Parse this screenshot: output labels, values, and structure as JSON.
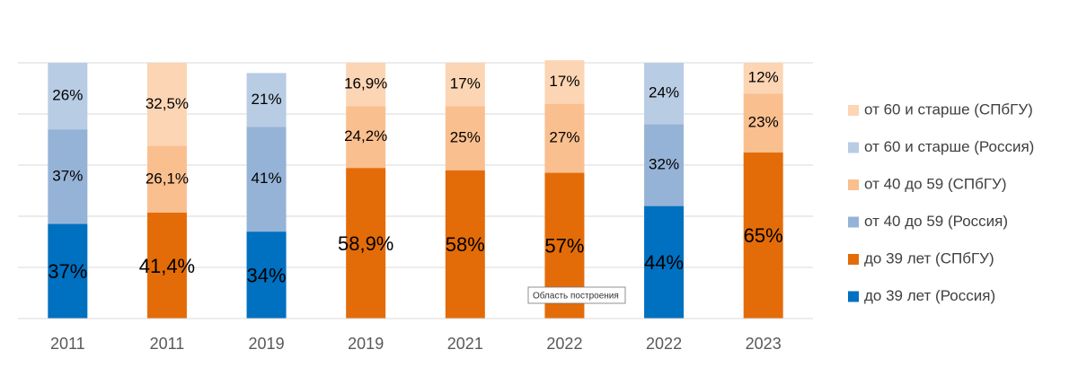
{
  "chart_data": {
    "type": "stacked_bar",
    "categories": [
      "2011",
      "2011",
      "2019",
      "2019",
      "2021",
      "2022",
      "2022",
      "2023"
    ],
    "ylim": [
      0,
      100
    ],
    "yticks": [
      0,
      20,
      40,
      60,
      80,
      100
    ],
    "grid": true,
    "legend": "right",
    "tooltip": "Область построения",
    "series": [
      {
        "name": "до 39 лет (Россия)",
        "color": "#0070c0",
        "values": [
          37,
          null,
          34,
          null,
          null,
          null,
          44,
          null
        ],
        "value_labels": [
          "37%",
          null,
          "34%",
          null,
          null,
          null,
          "44%",
          null
        ]
      },
      {
        "name": "до 39 лет (СПбГУ)",
        "color": "#e36c09",
        "values": [
          null,
          41.4,
          null,
          58.9,
          58,
          57,
          null,
          65
        ],
        "value_labels": [
          null,
          "41,4%",
          null,
          "58,9%",
          "58%",
          "57%",
          null,
          "65%"
        ]
      },
      {
        "name": "от 40 до 59 (Россия)",
        "color": "#95b3d7",
        "values": [
          37,
          null,
          41,
          null,
          null,
          null,
          32,
          null
        ],
        "value_labels": [
          "37%",
          null,
          "41%",
          null,
          null,
          null,
          "32%",
          null
        ]
      },
      {
        "name": "от 40 до 59 (СПбГУ)",
        "color": "#fabf8f",
        "values": [
          null,
          26.1,
          null,
          24.2,
          25,
          27,
          null,
          23
        ],
        "value_labels": [
          null,
          "26,1%",
          null,
          "24,2%",
          "25%",
          "27%",
          null,
          "23%"
        ]
      },
      {
        "name": "от 60 и старше (Россия)",
        "color": "#b8cce4",
        "values": [
          26,
          null,
          21,
          null,
          null,
          null,
          24,
          null
        ],
        "value_labels": [
          "26%",
          null,
          "21%",
          null,
          null,
          null,
          "24%",
          null
        ]
      },
      {
        "name": "от 60 и старше (СПбГУ)",
        "color": "#fcd5b4",
        "values": [
          null,
          32.5,
          null,
          16.9,
          17,
          17,
          null,
          12
        ],
        "value_labels": [
          null,
          "32,5%",
          null,
          "16,9%",
          "17%",
          "17%",
          null,
          "12%"
        ]
      }
    ]
  }
}
